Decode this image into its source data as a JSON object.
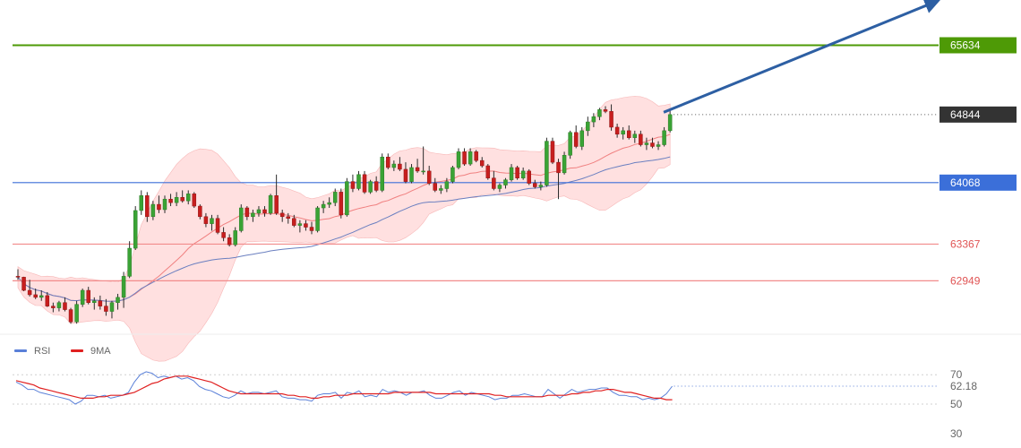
{
  "chart_data": [
    {
      "type": "candlestick",
      "title": "",
      "ylim": [
        62350,
        66150
      ],
      "levels": [
        {
          "name": "resistance",
          "value": 65634,
          "label": "65634",
          "color": "#4e9a06",
          "label_style": "tag"
        },
        {
          "name": "support-1",
          "value": 64068,
          "label": "64068",
          "color": "#3b6fd9",
          "label_style": "tag"
        },
        {
          "name": "support-2",
          "value": 63367,
          "label": "63367",
          "color": "#f28b8b",
          "label_style": "text"
        },
        {
          "name": "support-3",
          "value": 62949,
          "label": "62949",
          "color": "#f28b8b",
          "label_style": "text"
        }
      ],
      "last_price": {
        "value": 64844,
        "label": "64844",
        "color": "#333333"
      },
      "trend_arrow": {
        "from_index": 109,
        "from_value": 64870,
        "to_value": 66120,
        "color": "#2d5fa3"
      },
      "candles": [
        [
          63000,
          63080,
          62960,
          62990
        ],
        [
          62990,
          62995,
          62830,
          62840
        ],
        [
          62840,
          62960,
          62770,
          62790
        ],
        [
          62790,
          62860,
          62740,
          62760
        ],
        [
          62760,
          62840,
          62720,
          62780
        ],
        [
          62780,
          62820,
          62650,
          62660
        ],
        [
          62660,
          62700,
          62590,
          62640
        ],
        [
          62640,
          62720,
          62600,
          62700
        ],
        [
          62700,
          62760,
          62600,
          62620
        ],
        [
          62620,
          62640,
          62460,
          62480
        ],
        [
          62480,
          62720,
          62460,
          62680
        ],
        [
          62680,
          62860,
          62650,
          62840
        ],
        [
          62840,
          62880,
          62680,
          62700
        ],
        [
          62700,
          62760,
          62620,
          62720
        ],
        [
          62720,
          62780,
          62620,
          62660
        ],
        [
          62660,
          62740,
          62550,
          62600
        ],
        [
          62600,
          62720,
          62520,
          62700
        ],
        [
          62700,
          62800,
          62620,
          62760
        ],
        [
          62760,
          63050,
          62640,
          63000
        ],
        [
          63000,
          63400,
          62980,
          63320
        ],
        [
          63320,
          63800,
          63300,
          63750
        ],
        [
          63750,
          63980,
          63700,
          63920
        ],
        [
          63920,
          63960,
          63620,
          63680
        ],
        [
          63680,
          63860,
          63640,
          63820
        ],
        [
          63820,
          63920,
          63720,
          63760
        ],
        [
          63760,
          63920,
          63720,
          63880
        ],
        [
          63880,
          63940,
          63800,
          63840
        ],
        [
          63840,
          63960,
          63800,
          63900
        ],
        [
          63900,
          63980,
          63840,
          63860
        ],
        [
          63860,
          63980,
          63820,
          63940
        ],
        [
          63940,
          63960,
          63780,
          63800
        ],
        [
          63800,
          63820,
          63650,
          63680
        ],
        [
          63680,
          63720,
          63560,
          63600
        ],
        [
          63600,
          63700,
          63520,
          63660
        ],
        [
          63660,
          63700,
          63480,
          63500
        ],
        [
          63500,
          63560,
          63400,
          63440
        ],
        [
          63440,
          63480,
          63340,
          63360
        ],
        [
          63360,
          63560,
          63340,
          63520
        ],
        [
          63520,
          63820,
          63500,
          63780
        ],
        [
          63780,
          63800,
          63640,
          63680
        ],
        [
          63680,
          63760,
          63620,
          63720
        ],
        [
          63720,
          63800,
          63680,
          63760
        ],
        [
          63760,
          63800,
          63680,
          63720
        ],
        [
          63720,
          63940,
          63700,
          63920
        ],
        [
          63920,
          64160,
          63700,
          63720
        ],
        [
          63720,
          63760,
          63620,
          63680
        ],
        [
          63680,
          63720,
          63600,
          63660
        ],
        [
          63660,
          63700,
          63560,
          63580
        ],
        [
          63580,
          63640,
          63500,
          63600
        ],
        [
          63600,
          63640,
          63520,
          63560
        ],
        [
          63560,
          63620,
          63480,
          63520
        ],
        [
          63520,
          63800,
          63500,
          63780
        ],
        [
          63780,
          63860,
          63720,
          63820
        ],
        [
          63820,
          63900,
          63780,
          63840
        ],
        [
          63840,
          64000,
          63800,
          63960
        ],
        [
          63960,
          64000,
          63660,
          63700
        ],
        [
          63700,
          64120,
          63680,
          64080
        ],
        [
          64080,
          64160,
          63960,
          64000
        ],
        [
          64000,
          64200,
          63980,
          64160
        ],
        [
          64160,
          64200,
          63940,
          63960
        ],
        [
          63960,
          64100,
          63940,
          64080
        ],
        [
          64080,
          64140,
          63960,
          63980
        ],
        [
          63980,
          64400,
          63960,
          64360
        ],
        [
          64360,
          64400,
          64220,
          64240
        ],
        [
          64240,
          64320,
          64200,
          64280
        ],
        [
          64280,
          64360,
          64200,
          64220
        ],
        [
          64220,
          64300,
          64060,
          64080
        ],
        [
          64080,
          64280,
          64060,
          64240
        ],
        [
          64240,
          64340,
          64180,
          64200
        ],
        [
          64200,
          64480,
          64160,
          64200
        ],
        [
          64200,
          64260,
          64040,
          64060
        ],
        [
          64060,
          64120,
          63960,
          63980
        ],
        [
          63980,
          64040,
          63940,
          64000
        ],
        [
          64000,
          64120,
          63960,
          64080
        ],
        [
          64080,
          64260,
          64060,
          64240
        ],
        [
          64240,
          64460,
          64220,
          64420
        ],
        [
          64420,
          64460,
          64260,
          64280
        ],
        [
          64280,
          64460,
          64260,
          64420
        ],
        [
          64420,
          64440,
          64300,
          64320
        ],
        [
          64320,
          64360,
          64240,
          64260
        ],
        [
          64260,
          64280,
          64100,
          64120
        ],
        [
          64120,
          64200,
          63980,
          64000
        ],
        [
          64000,
          64060,
          63960,
          64040
        ],
        [
          64040,
          64120,
          64000,
          64100
        ],
        [
          64100,
          64280,
          64080,
          64240
        ],
        [
          64240,
          64260,
          64100,
          64120
        ],
        [
          64120,
          64240,
          64100,
          64200
        ],
        [
          64200,
          64220,
          64040,
          64060
        ],
        [
          64060,
          64100,
          64000,
          64020
        ],
        [
          64020,
          64080,
          63980,
          64040
        ],
        [
          64040,
          64580,
          64020,
          64540
        ],
        [
          64540,
          64580,
          64280,
          64300
        ],
        [
          64300,
          64340,
          63880,
          64180
        ],
        [
          64180,
          64420,
          64160,
          64380
        ],
        [
          64380,
          64660,
          64340,
          64640
        ],
        [
          64640,
          64720,
          64460,
          64480
        ],
        [
          64480,
          64700,
          64440,
          64660
        ],
        [
          64660,
          64820,
          64600,
          64760
        ],
        [
          64760,
          64860,
          64700,
          64820
        ],
        [
          64820,
          64920,
          64780,
          64900
        ],
        [
          64900,
          64940,
          64860,
          64880
        ],
        [
          64880,
          64960,
          64660,
          64700
        ],
        [
          64700,
          64740,
          64580,
          64620
        ],
        [
          64620,
          64700,
          64560,
          64660
        ],
        [
          64660,
          64720,
          64560,
          64580
        ],
        [
          64580,
          64660,
          64520,
          64620
        ],
        [
          64620,
          64660,
          64480,
          64500
        ],
        [
          64500,
          64580,
          64440,
          64520
        ],
        [
          64520,
          64580,
          64460,
          64480
        ],
        [
          64480,
          64540,
          64440,
          64500
        ],
        [
          64500,
          64700,
          64480,
          64660
        ],
        [
          64660,
          64900,
          64640,
          64844
        ]
      ],
      "legend": [
        {
          "name": "RSI",
          "color": "#5a80d8"
        },
        {
          "name": "9MA",
          "color": "#e02020"
        }
      ],
      "rsi": {
        "ylim": [
          25,
          75
        ],
        "ticks": [
          {
            "value": 70,
            "label": "70"
          },
          {
            "value": 50,
            "label": "50"
          },
          {
            "value": 30,
            "label": "30"
          }
        ],
        "last": {
          "value": 62.18,
          "label": "62.18"
        },
        "values": [
          65,
          63,
          60,
          60,
          58,
          57,
          56,
          55,
          54,
          53,
          50,
          52,
          56,
          56,
          55,
          56,
          54,
          55,
          56,
          58,
          65,
          70,
          72,
          71,
          68,
          69,
          68,
          69,
          67,
          68,
          66,
          62,
          60,
          59,
          57,
          55,
          54,
          56,
          59,
          57,
          58,
          58,
          57,
          58,
          59,
          55,
          54,
          54,
          53,
          53,
          52,
          56,
          57,
          57,
          58,
          54,
          58,
          57,
          59,
          55,
          56,
          55,
          60,
          58,
          59,
          58,
          56,
          58,
          58,
          59,
          56,
          54,
          54,
          56,
          58,
          59,
          56,
          58,
          57,
          56,
          55,
          53,
          54,
          54,
          56,
          56,
          57,
          56,
          55,
          55,
          60,
          57,
          54,
          57,
          60,
          58,
          59,
          60,
          60,
          61,
          61,
          58,
          56,
          56,
          55,
          55,
          53,
          54,
          53,
          54,
          57,
          62.18
        ],
        "ma9": [
          66,
          65,
          64,
          63,
          61,
          60,
          59,
          58,
          57,
          56,
          55,
          54,
          54,
          54,
          55,
          55,
          56,
          56,
          56,
          57,
          58,
          60,
          62,
          64,
          65,
          67,
          68,
          69,
          69,
          69,
          68,
          67,
          66,
          65,
          63,
          61,
          59,
          58,
          57,
          57,
          57,
          57,
          57,
          57,
          57,
          57,
          56,
          56,
          55,
          55,
          54,
          54,
          55,
          55,
          56,
          56,
          56,
          57,
          57,
          57,
          57,
          57,
          57,
          57,
          58,
          58,
          58,
          58,
          58,
          58,
          58,
          57,
          57,
          57,
          57,
          57,
          57,
          57,
          57,
          57,
          57,
          56,
          56,
          55,
          55,
          55,
          55,
          55,
          55,
          55,
          56,
          56,
          56,
          56,
          57,
          57,
          58,
          58,
          59,
          59,
          60,
          60,
          59,
          58,
          58,
          57,
          56,
          55,
          54,
          54,
          53,
          53
        ]
      }
    }
  ]
}
